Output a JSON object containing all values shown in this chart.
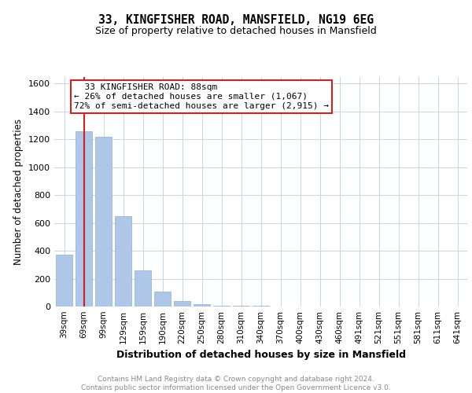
{
  "title1": "33, KINGFISHER ROAD, MANSFIELD, NG19 6EG",
  "title2": "Size of property relative to detached houses in Mansfield",
  "xlabel": "Distribution of detached houses by size in Mansfield",
  "ylabel": "Number of detached properties",
  "categories": [
    "39sqm",
    "69sqm",
    "99sqm",
    "129sqm",
    "159sqm",
    "190sqm",
    "220sqm",
    "250sqm",
    "280sqm",
    "310sqm",
    "340sqm",
    "370sqm",
    "400sqm",
    "430sqm",
    "460sqm",
    "491sqm",
    "521sqm",
    "551sqm",
    "581sqm",
    "611sqm",
    "641sqm"
  ],
  "values": [
    370,
    1260,
    1220,
    650,
    260,
    110,
    40,
    15,
    8,
    5,
    3,
    2,
    2,
    1,
    1,
    1,
    0,
    0,
    0,
    0,
    0
  ],
  "bar_color": "#aec6e8",
  "bar_edge_color": "#8ab0d0",
  "vline_x": 1,
  "vline_color": "#cc2222",
  "annotation_text": "  33 KINGFISHER ROAD: 88sqm  \n← 26% of detached houses are smaller (1,067)\n72% of semi-detached houses are larger (2,915) →",
  "annotation_box_color": "#ffffff",
  "annotation_box_edge": "#cc2222",
  "ylim": [
    0,
    1650
  ],
  "yticks": [
    0,
    200,
    400,
    600,
    800,
    1000,
    1200,
    1400,
    1600
  ],
  "footer_text": "Contains HM Land Registry data © Crown copyright and database right 2024.\nContains public sector information licensed under the Open Government Licence v3.0.",
  "background_color": "#ffffff",
  "grid_color": "#c8d4e8"
}
